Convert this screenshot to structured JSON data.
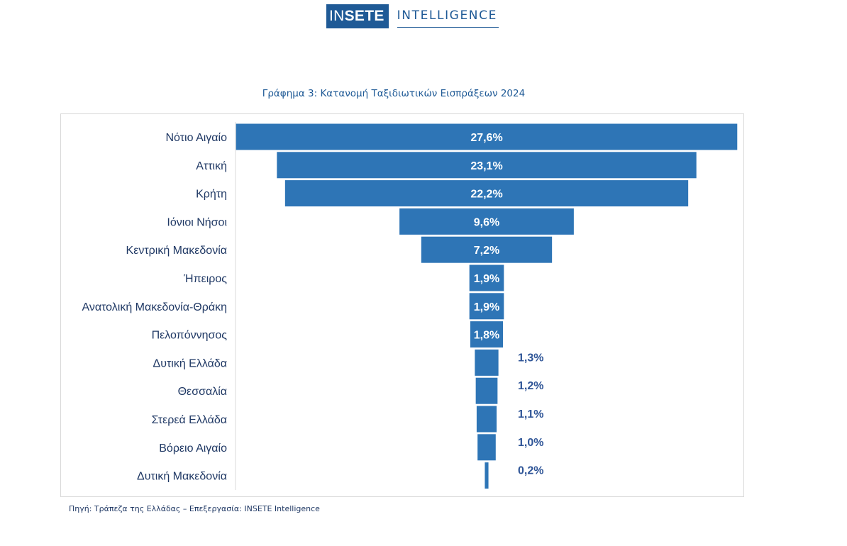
{
  "header": {
    "logo_left_thin": "IN",
    "logo_left_bold": "SETE",
    "logo_right": "INTELLIGENCE"
  },
  "colors": {
    "bar": "#2e75b6",
    "brand": "#1f5a96",
    "label_text": "#1f3864",
    "inside_label": "#ffffff",
    "outside_label": "#2f5597"
  },
  "chart_data": {
    "type": "bar",
    "orientation": "horizontal-centered-funnel",
    "title": "Γράφημα 3: Κατανομή Ταξιδιωτικών Εισπράξεων 2024",
    "categories": [
      "Νότιο Αιγαίο",
      "Αττική",
      "Κρήτη",
      "Ιόνιοι Νήσοι",
      "Κεντρική Μακεδονία",
      "Ήπειρος",
      "Ανατολική Μακεδονία-Θράκη",
      "Πελοπόννησος",
      "Δυτική Ελλάδα",
      "Θεσσαλία",
      "Στερεά Ελλάδα",
      "Βόρειο Αιγαίο",
      "Δυτική Μακεδονία"
    ],
    "values": [
      27.6,
      23.1,
      22.2,
      9.6,
      7.2,
      1.9,
      1.9,
      1.8,
      1.3,
      1.2,
      1.1,
      1.0,
      0.2
    ],
    "value_labels": [
      "27,6%",
      "23,1%",
      "22,2%",
      "9,6%",
      "7,2%",
      "1,9%",
      "1,9%",
      "1,8%",
      "1,3%",
      "1,2%",
      "1,1%",
      "1,0%",
      "0,2%"
    ],
    "unit": "%",
    "xlabel": "",
    "ylabel": "",
    "legend": "none",
    "grid": false
  },
  "footer": {
    "source": "Πηγή: Τράπεζα της Ελλάδας – Επεξεργασία: INSETE Intelligence"
  }
}
